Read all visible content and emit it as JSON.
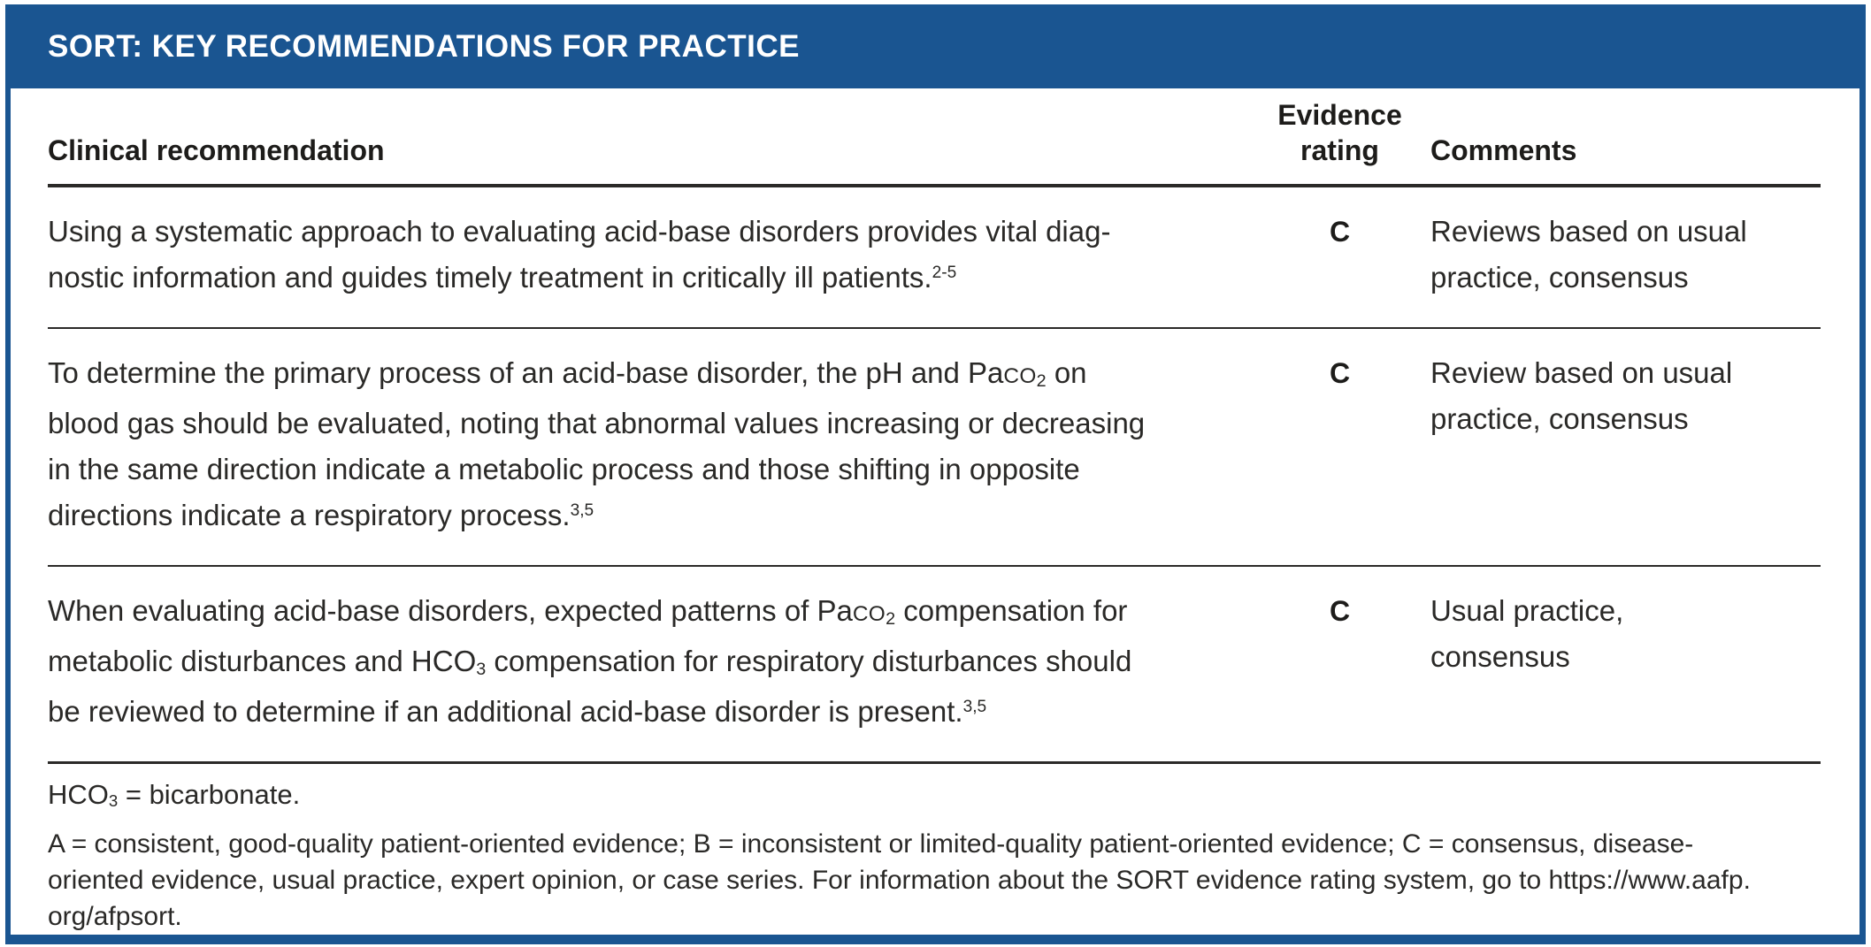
{
  "title": "SORT: KEY RECOMMENDATIONS FOR PRACTICE",
  "columns": {
    "clinical": "Clinical recommendation",
    "evidence_top": "Evidence",
    "evidence_bottom": "rating",
    "comments": "Comments"
  },
  "rows": [
    {
      "recommendation_lines": [
        [
          "Using a systematic approach to evaluating acid-base disorders provides vital diag-"
        ],
        [
          "nostic information and guides timely treatment in critically ill patients.",
          {
            "t": "2-5",
            "s": "sup"
          }
        ]
      ],
      "rating": "C",
      "comment_lines": [
        [
          "Reviews based on usual"
        ],
        [
          "practice, consensus"
        ]
      ]
    },
    {
      "recommendation_lines": [
        [
          "To determine the primary process of an acid-base disorder, the pH and Pa",
          {
            "t": "CO",
            "s": "sc"
          },
          {
            "t": "2",
            "s": "sub"
          },
          " on"
        ],
        [
          "blood gas should be evaluated, noting that abnormal values increasing or decreasing"
        ],
        [
          "in the same direction indicate a metabolic process and those shifting in opposite"
        ],
        [
          "directions indicate a respiratory process.",
          {
            "t": "3,5",
            "s": "sup"
          }
        ]
      ],
      "rating": "C",
      "comment_lines": [
        [
          "Review based on usual"
        ],
        [
          "practice, consensus"
        ]
      ]
    },
    {
      "recommendation_lines": [
        [
          "When evaluating acid-base disorders, expected patterns of Pa",
          {
            "t": "CO",
            "s": "sc"
          },
          {
            "t": "2",
            "s": "sub"
          },
          " compensation for"
        ],
        [
          "metabolic disturbances and HCO",
          {
            "t": "3",
            "s": "sub"
          },
          " compensation for respiratory disturbances should"
        ],
        [
          "be reviewed to determine if an additional acid-base disorder is present.",
          {
            "t": "3,5",
            "s": "sup"
          }
        ]
      ],
      "rating": "C",
      "comment_lines": [
        [
          "Usual practice,"
        ],
        [
          "consensus"
        ]
      ]
    }
  ],
  "footnotes": {
    "abbreviation_lines": [
      [
        "HCO",
        {
          "t": "3",
          "s": "sub"
        },
        " = bicarbonate."
      ]
    ],
    "sort_description_lines": [
      [
        "A = consistent, good-quality patient-oriented evidence; B = inconsistent or limited-quality patient-oriented evidence; C = consensus, disease-"
      ],
      [
        "oriented evidence, usual practice, expert opinion, or case series. For information about the SORT evidence rating system, go to https://www.aafp."
      ],
      [
        "org/afpsort."
      ]
    ]
  },
  "colors": {
    "accent_blue": "#1A5591",
    "rule_black": "#2B2A28",
    "text": "#2A2927"
  }
}
